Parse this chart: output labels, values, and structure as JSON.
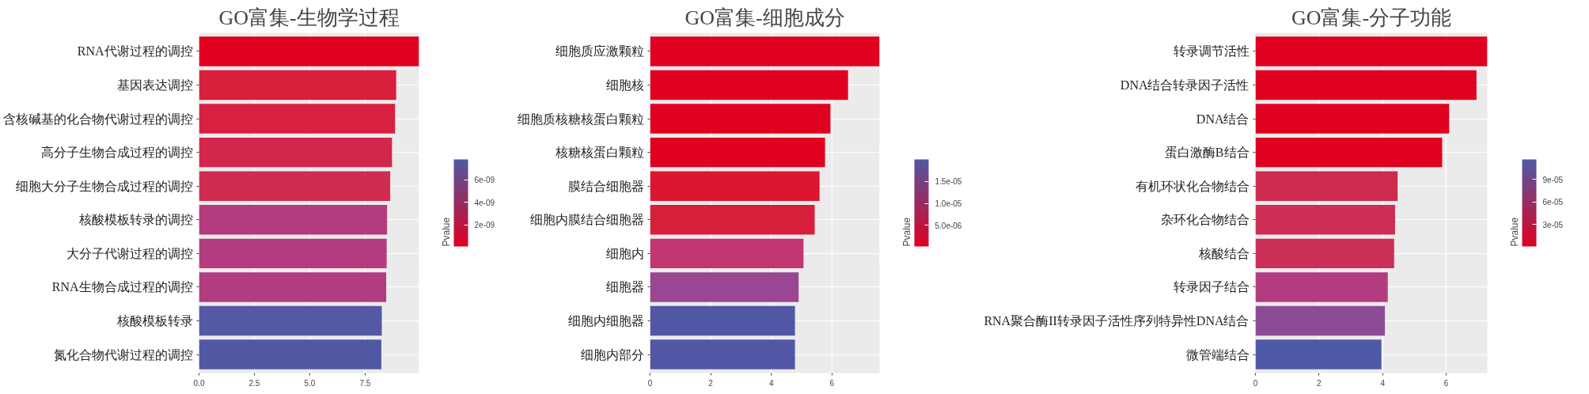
{
  "chart_data": [
    {
      "type": "bar",
      "orientation": "horizontal",
      "title": "GO富集-生物学过程",
      "categories": [
        "RNA代谢过程的调控",
        "基因表达调控",
        "含核碱基的化合物代谢过程的调控",
        "高分子生物合成过程的调控",
        "细胞大分子生物合成过程的调控",
        "核酸模板转录的调控",
        "大分子代谢过程的调控",
        "RNA生物合成过程的调控",
        "核酸模板转录",
        "氮化合物代谢过程的调控"
      ],
      "values": [
        9.93,
        8.9,
        8.85,
        8.71,
        8.63,
        8.49,
        8.47,
        8.45,
        8.25,
        8.23
      ],
      "colors": [
        "#e0001f",
        "#d9203a",
        "#d82140",
        "#d3264a",
        "#d02c52",
        "#b43b7d",
        "#b33c7f",
        "#b13d80",
        "#5558a4",
        "#5158a3"
      ],
      "xlim": [
        0,
        9.93
      ],
      "xticks": [
        {
          "value": 0,
          "label": "0.0"
        },
        2.5,
        {
          "value": 5,
          "label": "5.0"
        },
        7.5
      ],
      "grid": true,
      "clabel": "Pvalue",
      "clim": [
        1e-10,
        7.8e-09
      ],
      "cticks": [
        {
          "value": 2e-09,
          "label": "2e-09"
        },
        {
          "value": 4e-09,
          "label": "4e-09"
        },
        {
          "value": 6e-09,
          "label": "6e-09"
        }
      ]
    },
    {
      "type": "bar",
      "orientation": "horizontal",
      "title": "GO富集-细胞成分",
      "categories": [
        "细胞质应激颗粒",
        "细胞核",
        "细胞质核糖核蛋白颗粒",
        "核糖核蛋白颗粒",
        "膜结合细胞器",
        "细胞内膜结合细胞器",
        "细胞内",
        "细胞器",
        "细胞内细胞器",
        "细胞内部分"
      ],
      "values": [
        7.57,
        6.53,
        5.95,
        5.77,
        5.59,
        5.43,
        5.06,
        4.9,
        4.78,
        4.78
      ],
      "colors": [
        "#e00020",
        "#e00020",
        "#e00020",
        "#e00020",
        "#dc1530",
        "#d51f3b",
        "#c13570",
        "#9a4692",
        "#5157a4",
        "#5157a4"
      ],
      "xlim": [
        0,
        7.57
      ],
      "xticks": [
        0,
        2,
        4,
        6
      ],
      "grid": true,
      "clabel": "Pvalue",
      "clim": [
        2e-07,
        2e-05
      ],
      "cticks": [
        {
          "value": 5e-06,
          "label": "5.0e-06"
        },
        {
          "value": 1e-05,
          "label": "1.0e-05"
        },
        {
          "value": 1.5e-05,
          "label": "1.5e-05"
        }
      ]
    },
    {
      "type": "bar",
      "orientation": "horizontal",
      "title": "GO富集-分子功能",
      "categories": [
        "转录调节活性",
        "DNA结合转录因子活性",
        "DNA结合",
        "蛋白激酶B结合",
        "有机环状化合物结合",
        "杂环化合物结合",
        "核酸结合",
        "转录因子结合",
        "RNA聚合酶II转录因子活性序列特异性DNA结合",
        "微管端结合"
      ],
      "values": [
        7.29,
        6.95,
        6.09,
        5.87,
        4.47,
        4.39,
        4.36,
        4.16,
        4.07,
        3.96
      ],
      "colors": [
        "#e00020",
        "#e00020",
        "#e00020",
        "#e00020",
        "#cf2b4f",
        "#cc2e55",
        "#cb2f57",
        "#b33c80",
        "#8d4b95",
        "#4f5aa6"
      ],
      "xlim": [
        0,
        7.29
      ],
      "xticks": [
        0,
        2,
        4,
        6
      ],
      "grid": true,
      "clabel": "Pvalue",
      "clim": [
        5e-07,
        0.000117
      ],
      "cticks": [
        {
          "value": 3e-05,
          "label": "3e-05"
        },
        {
          "value": 6e-05,
          "label": "6e-05"
        },
        {
          "value": 9e-05,
          "label": "9e-05"
        }
      ]
    }
  ]
}
